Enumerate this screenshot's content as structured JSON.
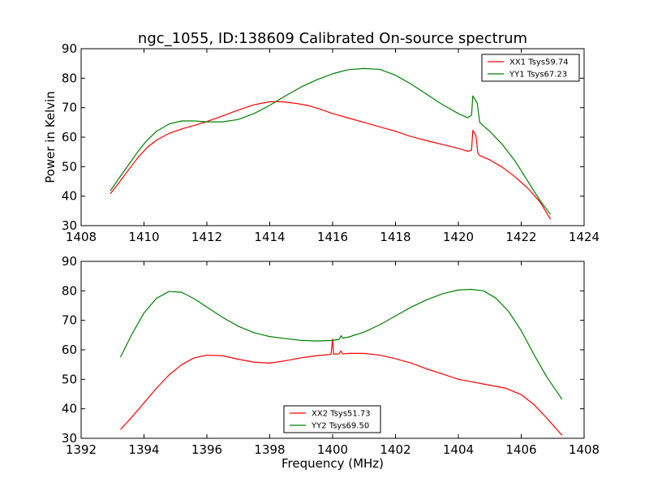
{
  "chart_data": {
    "type": "line",
    "title": "ngc_1055, ID:138609 Calibrated On-source spectrum",
    "ylabel": "Power in Kelvin",
    "xlabel": "Frequency (MHz)",
    "panels": [
      {
        "id": "top",
        "xlim": [
          1408,
          1424
        ],
        "ylim": [
          30,
          90
        ],
        "xticks": [
          1408,
          1410,
          1412,
          1414,
          1416,
          1418,
          1420,
          1422,
          1424
        ],
        "yticks": [
          30,
          40,
          50,
          60,
          70,
          80,
          90
        ],
        "legend_position": "top-right",
        "series": [
          {
            "name": "XX1 Tsys59.74",
            "color": "#ff0000",
            "x": [
              1408.93,
              1409.2,
              1409.5,
              1409.8,
              1410.1,
              1410.4,
              1410.8,
              1411.2,
              1411.6,
              1412.0,
              1412.5,
              1413.0,
              1413.5,
              1414.0,
              1414.4,
              1414.8,
              1415.2,
              1415.6,
              1416.0,
              1416.5,
              1417.0,
              1417.5,
              1418.0,
              1418.5,
              1419.0,
              1419.5,
              1420.0,
              1420.3,
              1420.42,
              1420.46,
              1420.5,
              1420.56,
              1420.62,
              1420.68,
              1420.8,
              1421.0,
              1421.4,
              1421.8,
              1422.2,
              1422.6,
              1422.93
            ],
            "y": [
              40.8,
              44.5,
              48.8,
              53.0,
              56.5,
              59.0,
              61.3,
              62.8,
              64.0,
              65.3,
              67.2,
              69.2,
              71.0,
              72.0,
              72.0,
              71.5,
              70.8,
              69.5,
              68.0,
              66.5,
              65.0,
              63.5,
              62.0,
              60.2,
              58.8,
              57.5,
              56.2,
              55.2,
              55.6,
              62.3,
              61.5,
              60.5,
              54.6,
              53.8,
              53.2,
              52.3,
              49.8,
              46.6,
              42.8,
              38.0,
              32.2
            ]
          },
          {
            "name": "YY1 Tsys67.23",
            "color": "#008000",
            "x": [
              1408.93,
              1409.2,
              1409.5,
              1409.8,
              1410.1,
              1410.4,
              1410.8,
              1411.2,
              1411.6,
              1412.0,
              1412.5,
              1413.0,
              1413.5,
              1414.0,
              1414.5,
              1415.0,
              1415.5,
              1416.0,
              1416.5,
              1417.0,
              1417.5,
              1418.0,
              1418.5,
              1419.0,
              1419.5,
              1420.0,
              1420.3,
              1420.42,
              1420.46,
              1420.52,
              1420.6,
              1420.68,
              1420.8,
              1421.0,
              1421.4,
              1421.8,
              1422.2,
              1422.6,
              1422.93
            ],
            "y": [
              41.8,
              46.0,
              50.5,
              55.0,
              59.0,
              62.0,
              64.5,
              65.5,
              65.5,
              65.2,
              65.2,
              66.0,
              68.0,
              70.8,
              74.0,
              77.0,
              79.5,
              81.5,
              82.9,
              83.3,
              83.0,
              81.0,
              78.0,
              74.5,
              71.0,
              68.0,
              66.6,
              67.5,
              74.0,
              73.0,
              71.5,
              65.0,
              63.8,
              62.0,
              57.5,
              52.0,
              45.2,
              38.5,
              33.8
            ]
          }
        ]
      },
      {
        "id": "bottom",
        "xlim": [
          1392,
          1408
        ],
        "ylim": [
          30,
          90
        ],
        "xticks": [
          1392,
          1394,
          1396,
          1398,
          1400,
          1402,
          1404,
          1406,
          1408
        ],
        "yticks": [
          30,
          40,
          50,
          60,
          70,
          80,
          90
        ],
        "legend_position": "lower-center",
        "series": [
          {
            "name": "XX2 Tsys51.73",
            "color": "#ff0000",
            "x": [
              1393.25,
              1393.6,
              1394.0,
              1394.4,
              1394.8,
              1395.2,
              1395.6,
              1396.0,
              1396.5,
              1397.0,
              1397.5,
              1398.0,
              1398.5,
              1399.0,
              1399.5,
              1399.95,
              1400.0,
              1400.03,
              1400.08,
              1400.2,
              1400.26,
              1400.32,
              1400.5,
              1401.0,
              1401.5,
              1402.0,
              1402.5,
              1403.0,
              1403.5,
              1404.0,
              1404.5,
              1405.0,
              1405.5,
              1406.0,
              1406.4,
              1406.8,
              1407.3
            ],
            "y": [
              33.0,
              37.0,
              42.0,
              47.0,
              51.5,
              55.0,
              57.3,
              58.2,
              58.0,
              56.8,
              55.8,
              55.5,
              56.3,
              57.3,
              58.0,
              58.5,
              63.7,
              58.5,
              58.6,
              58.6,
              59.6,
              58.6,
              58.8,
              58.8,
              58.2,
              57.0,
              55.5,
              53.5,
              51.8,
              50.0,
              49.0,
              48.0,
              47.0,
              44.8,
              41.5,
              37.0,
              31.0
            ]
          },
          {
            "name": "YY2 Tsys69.50",
            "color": "#008000",
            "x": [
              1393.25,
              1393.6,
              1394.0,
              1394.4,
              1394.8,
              1395.2,
              1395.6,
              1396.0,
              1396.5,
              1397.0,
              1397.5,
              1398.0,
              1398.5,
              1399.0,
              1399.5,
              1400.0,
              1400.2,
              1400.27,
              1400.32,
              1400.5,
              1401.0,
              1401.5,
              1402.0,
              1402.5,
              1403.0,
              1403.5,
              1404.0,
              1404.4,
              1404.8,
              1405.2,
              1405.6,
              1406.0,
              1406.4,
              1406.8,
              1407.3
            ],
            "y": [
              57.5,
              65.0,
              72.5,
              77.5,
              79.8,
              79.5,
              77.3,
              74.5,
              71.0,
              68.0,
              65.8,
              64.5,
              63.8,
              63.2,
              63.0,
              63.2,
              63.5,
              64.8,
              64.0,
              64.3,
              66.0,
              68.5,
              71.5,
              74.5,
              77.0,
              79.0,
              80.3,
              80.5,
              80.0,
              77.5,
              73.0,
              66.5,
              58.5,
              51.0,
              43.2
            ]
          }
        ]
      }
    ]
  }
}
